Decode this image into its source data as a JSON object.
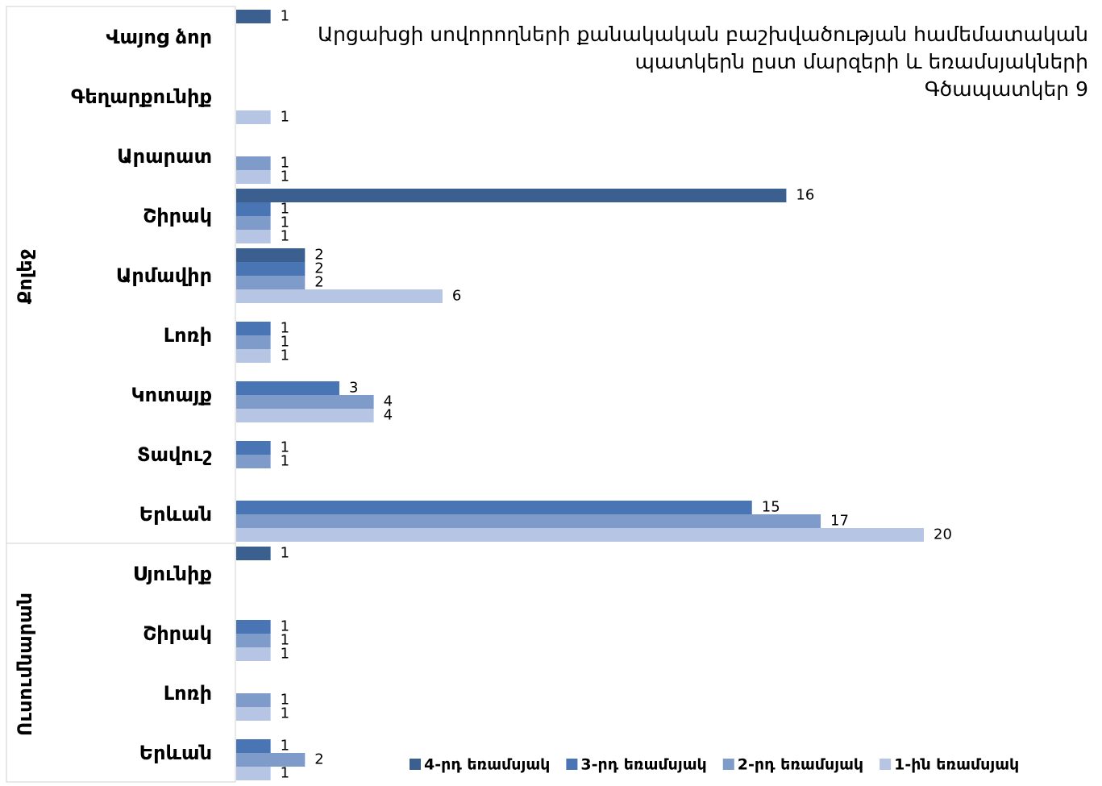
{
  "chart_data": {
    "type": "bar",
    "orientation": "horizontal",
    "title": [
      "Արցախցի սովորողների քանակական բաշխվածության համեմատական",
      "պատկերն ըստ մարզերի և եռամսյակների",
      "Գծապատկեր 9"
    ],
    "category_groups": [
      {
        "name": "Քոլեջ",
        "categories": [
          "Վայոց ձոր",
          "Գեղարքունիք",
          "Արարատ",
          "Շիրակ",
          "Արմավիր",
          "Լոռի",
          "Կոտայք",
          "Տավուշ",
          "Երևան"
        ]
      },
      {
        "name": "Ուսումնարան",
        "categories": [
          "Սյունիք",
          "Շիրակ",
          "Լոռի",
          "Երևան"
        ]
      }
    ],
    "series": [
      {
        "name": "4-րդ եռամսյակ",
        "color": "#3b5f8e",
        "values": [
          1,
          null,
          null,
          16,
          2,
          null,
          null,
          null,
          null,
          1,
          null,
          null,
          null
        ]
      },
      {
        "name": "3-րդ եռամսյակ",
        "color": "#4a75b5",
        "values": [
          null,
          null,
          null,
          1,
          2,
          1,
          3,
          1,
          15,
          null,
          1,
          null,
          1
        ]
      },
      {
        "name": "2-րդ եռամսյակ",
        "color": "#7e9bca",
        "values": [
          null,
          null,
          1,
          1,
          2,
          1,
          4,
          1,
          17,
          null,
          1,
          1,
          2
        ]
      },
      {
        "name": "1-ին եռամսյակ",
        "color": "#b5c5e3",
        "values": [
          null,
          1,
          1,
          1,
          6,
          1,
          4,
          null,
          20,
          null,
          1,
          1,
          1
        ]
      }
    ],
    "xlim": [
      0,
      20
    ],
    "legend": "bottom-right"
  }
}
